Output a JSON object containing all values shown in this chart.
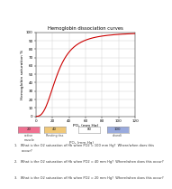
{
  "title": "Hemoglobin dissociation curves",
  "xlabel": "PO₂ (mm Hg)",
  "ylabel": "Hemoglobin saturation %",
  "xlim": [
    0,
    120
  ],
  "ylim": [
    0,
    100
  ],
  "xticks": [
    0,
    20,
    40,
    60,
    80,
    100,
    120
  ],
  "yticks": [
    0,
    10,
    20,
    30,
    40,
    50,
    60,
    70,
    80,
    90,
    100
  ],
  "curve_color": "#cc0000",
  "background_color": "#ffffff",
  "grid_color": "#cccccc",
  "pdf_bg": "#222222",
  "pdf_text": "#ffffff",
  "legend_boxes": [
    {
      "label": "active\nmuscle",
      "num": "20",
      "color": "#f07090"
    },
    {
      "label": "Resting tiss",
      "num": "40",
      "color": "#f0c878"
    },
    {
      "label": "",
      "num": "80",
      "color": "#ffffff"
    },
    {
      "label": "alveoli",
      "num": "100",
      "color": "#99aadd"
    }
  ],
  "questions": [
    "1.   What is the O2 saturation of Hb when PO2 = 100 mm Hg?  Where/when does this\n       occur?",
    "2.   What is the O2 saturation of Hb when PO2 = 40 mm Hg?  Where/when does this occur?",
    "3.   What is the O2 saturation of Hb when PO2 = 20 mm Hg?  Where/when does this occur?"
  ]
}
